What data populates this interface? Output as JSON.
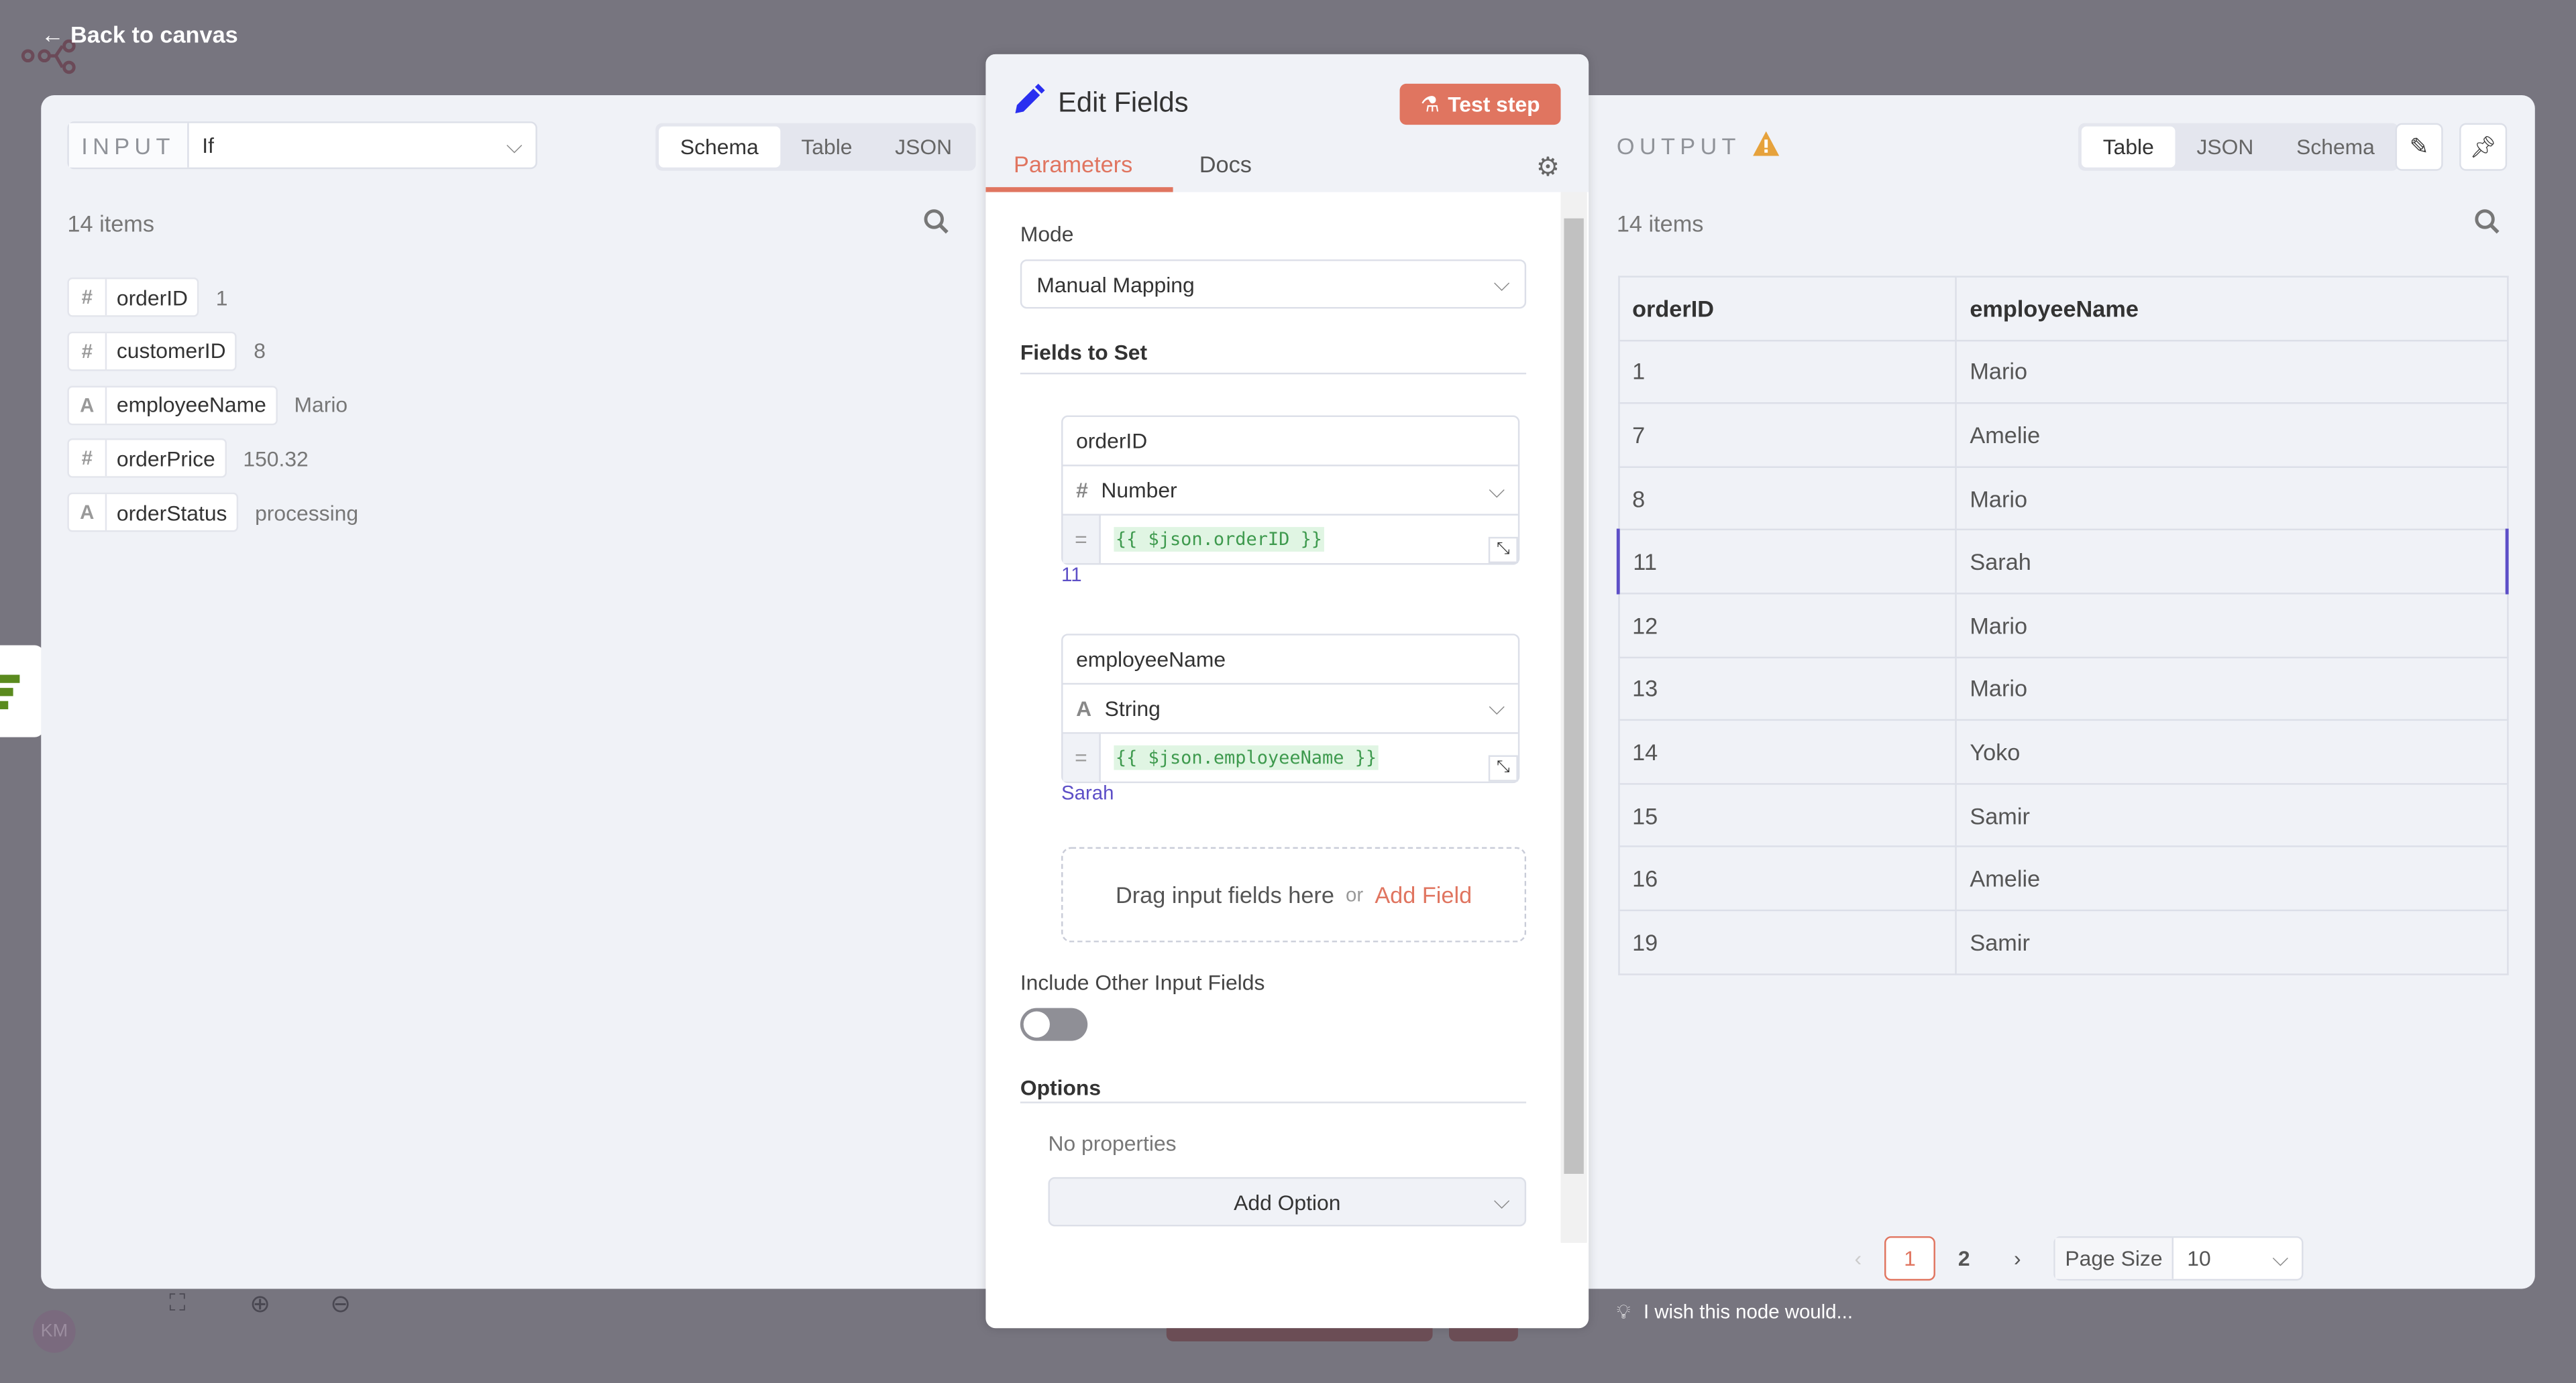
{
  "nav": {
    "back_label": "Back to canvas"
  },
  "input": {
    "label": "INPUT",
    "node": "If",
    "tabs": [
      "Schema",
      "Table",
      "JSON"
    ],
    "active_tab": "Schema",
    "count": "14 items",
    "fields": [
      {
        "type": "#",
        "name": "orderID",
        "value": "1"
      },
      {
        "type": "#",
        "name": "customerID",
        "value": "8"
      },
      {
        "type": "A",
        "name": "employeeName",
        "value": "Mario"
      },
      {
        "type": "#",
        "name": "orderPrice",
        "value": "150.32"
      },
      {
        "type": "A",
        "name": "orderStatus",
        "value": "processing"
      }
    ]
  },
  "node": {
    "title": "Edit Fields",
    "test_label": "Test step",
    "tabs": [
      "Parameters",
      "Docs"
    ],
    "active_tab": "Parameters",
    "mode_label": "Mode",
    "mode_value": "Manual Mapping",
    "fields_label": "Fields to Set",
    "assignments": [
      {
        "name": "orderID",
        "type_icon": "#",
        "type": "Number",
        "expression": "{{ $json.orderID }}",
        "result": "11"
      },
      {
        "name": "employeeName",
        "type_icon": "A",
        "type": "String",
        "expression": "{{ $json.employeeName }}",
        "result": "Sarah"
      }
    ],
    "drop_text": "Drag input fields here",
    "drop_or": "or",
    "add_field": "Add Field",
    "include_label": "Include Other Input Fields",
    "include_on": false,
    "options_label": "Options",
    "no_properties": "No properties",
    "add_option": "Add Option"
  },
  "output": {
    "label": "OUTPUT",
    "warning_icon": "warning-icon",
    "tabs": [
      "Table",
      "JSON",
      "Schema"
    ],
    "active_tab": "Table",
    "count": "14 items",
    "columns": [
      "orderID",
      "employeeName"
    ],
    "rows": [
      [
        "1",
        "Mario"
      ],
      [
        "7",
        "Amelie"
      ],
      [
        "8",
        "Mario"
      ],
      [
        "11",
        "Sarah"
      ],
      [
        "12",
        "Mario"
      ],
      [
        "13",
        "Mario"
      ],
      [
        "14",
        "Yoko"
      ],
      [
        "15",
        "Samir"
      ],
      [
        "16",
        "Amelie"
      ],
      [
        "19",
        "Samir"
      ]
    ],
    "selected_row": "11",
    "pages": [
      "1",
      "2"
    ],
    "current_page": "1",
    "page_size_label": "Page Size",
    "page_size": "10"
  },
  "footer": {
    "feedback": "I wish this node would...",
    "avatar": "KM"
  },
  "colors": {
    "accent": "#e07560",
    "highlight": "#5d4fc7",
    "pencil": "#2a2ff0"
  }
}
